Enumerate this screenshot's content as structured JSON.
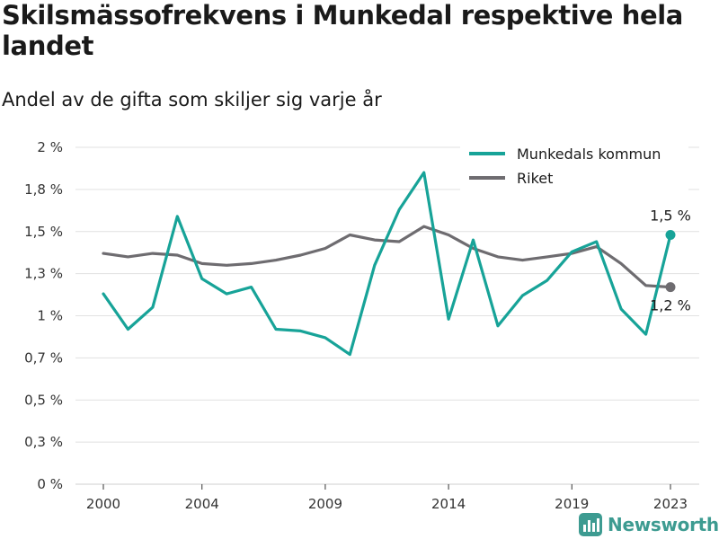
{
  "title": "Skilsmässofrekvens i Munkedal respektive hela landet",
  "subtitle": "Andel av de gifta som skiljer sig varje år",
  "brand": {
    "name": "Newsworthy",
    "color": "#3d9b91"
  },
  "chart_data": {
    "type": "line",
    "x": [
      2000,
      2001,
      2002,
      2003,
      2004,
      2005,
      2006,
      2007,
      2008,
      2009,
      2010,
      2011,
      2012,
      2013,
      2014,
      2015,
      2016,
      2017,
      2018,
      2019,
      2020,
      2021,
      2022,
      2023
    ],
    "x_tick_labels": [
      "2000",
      "2004",
      "2009",
      "2014",
      "2019",
      "2023"
    ],
    "y_tick_labels": [
      "0 %",
      "0,3 %",
      "0,5 %",
      "0,7 %",
      "1 %",
      "1,3 %",
      "1,5 %",
      "1,8 %",
      "2 %"
    ],
    "ylim": [
      0,
      2
    ],
    "grid": true,
    "legend_position": "top-right",
    "series": [
      {
        "name": "Munkedals kommun",
        "color": "#17a398",
        "values": [
          1.13,
          0.92,
          1.05,
          1.59,
          1.22,
          1.13,
          1.17,
          0.92,
          0.91,
          0.87,
          0.77,
          1.3,
          1.63,
          1.85,
          0.98,
          1.45,
          0.94,
          1.12,
          1.21,
          1.38,
          1.44,
          1.04,
          0.89,
          1.48
        ],
        "end_label": "1,5 %"
      },
      {
        "name": "Riket",
        "color": "#6e6c70",
        "values": [
          1.37,
          1.35,
          1.37,
          1.36,
          1.31,
          1.3,
          1.31,
          1.33,
          1.36,
          1.4,
          1.48,
          1.45,
          1.44,
          1.53,
          1.48,
          1.4,
          1.35,
          1.33,
          1.35,
          1.37,
          1.41,
          1.31,
          1.18,
          1.17
        ],
        "end_label": "1,2 %"
      }
    ]
  }
}
